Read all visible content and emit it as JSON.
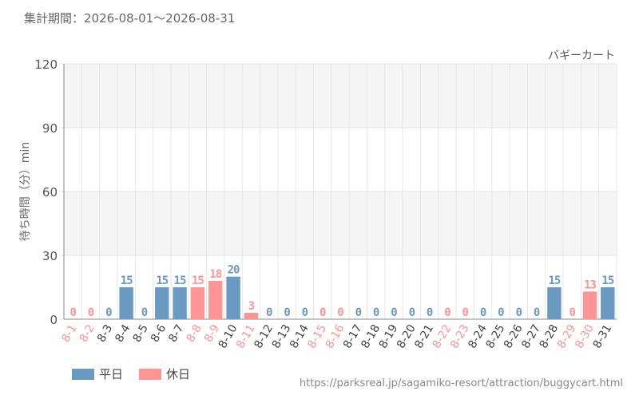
{
  "period_text": "集計期間：2026-08-01～2026-08-31",
  "source_url": "https://parksreal.jp/sagamiko-resort/attraction/buggycart.html",
  "colors": {
    "weekday": "#6a99c1",
    "holiday": "#ff9494",
    "grid": "#e6e6e6",
    "band": "#f5f5f5"
  },
  "chart_data": {
    "type": "bar",
    "title": "バギーカート",
    "ylabel": "待ち時間（分）min",
    "xlabel": "",
    "ylim": [
      0,
      120
    ],
    "yticks": [
      0,
      30,
      60,
      90,
      120
    ],
    "categories": [
      "8-1",
      "8-2",
      "8-3",
      "8-4",
      "8-5",
      "8-6",
      "8-7",
      "8-8",
      "8-9",
      "8-10",
      "8-11",
      "8-12",
      "8-13",
      "8-14",
      "8-15",
      "8-16",
      "8-17",
      "8-18",
      "8-19",
      "8-20",
      "8-21",
      "8-22",
      "8-23",
      "8-24",
      "8-25",
      "8-26",
      "8-27",
      "8-28",
      "8-29",
      "8-30",
      "8-31"
    ],
    "values": [
      0,
      0,
      0,
      15,
      0,
      15,
      15,
      15,
      18,
      20,
      3,
      0,
      0,
      0,
      0,
      0,
      0,
      0,
      0,
      0,
      0,
      0,
      0,
      0,
      0,
      0,
      0,
      15,
      0,
      13,
      15
    ],
    "day_type": [
      "holiday",
      "holiday",
      "weekday",
      "weekday",
      "weekday",
      "weekday",
      "weekday",
      "holiday",
      "holiday",
      "weekday",
      "holiday",
      "weekday",
      "weekday",
      "weekday",
      "holiday",
      "holiday",
      "weekday",
      "weekday",
      "weekday",
      "weekday",
      "weekday",
      "holiday",
      "holiday",
      "weekday",
      "weekday",
      "weekday",
      "weekday",
      "weekday",
      "holiday",
      "holiday",
      "weekday"
    ],
    "legend": [
      {
        "key": "weekday",
        "label": "平日"
      },
      {
        "key": "holiday",
        "label": "休日"
      }
    ]
  }
}
